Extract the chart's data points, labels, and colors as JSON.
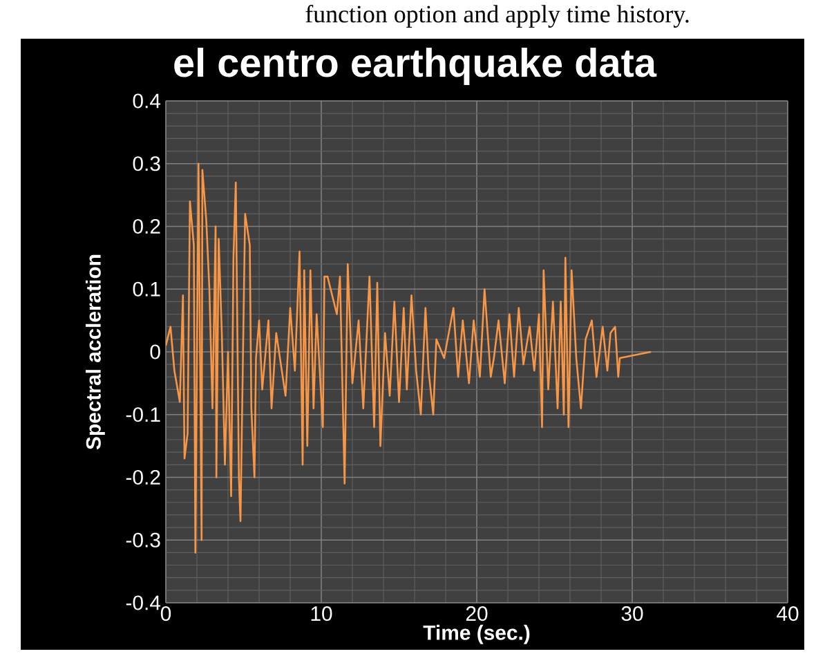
{
  "chart_data": {
    "type": "line",
    "title": "el centro earthquake data",
    "xlabel": "Time (sec.)",
    "ylabel": "Spectral accleration",
    "annotations": [
      "function option and apply time history."
    ],
    "xlim": [
      0,
      40
    ],
    "ylim": [
      -0.4,
      0.4
    ],
    "xticks": [
      0,
      10,
      20,
      30,
      40
    ],
    "yticks": [
      -0.4,
      -0.3,
      -0.2,
      -0.1,
      0,
      0.1,
      0.2,
      0.3,
      0.4
    ],
    "grid": true,
    "x": [
      0,
      0.3,
      0.55,
      0.9,
      1.1,
      1.2,
      1.4,
      1.55,
      1.8,
      1.9,
      2.1,
      2.3,
      2.35,
      2.6,
      2.8,
      3.0,
      3.2,
      3.25,
      3.4,
      3.6,
      3.8,
      4.0,
      4.2,
      4.35,
      4.5,
      4.7,
      4.8,
      5.1,
      5.4,
      5.5,
      5.7,
      5.8,
      6.0,
      6.2,
      6.6,
      6.8,
      7.1,
      7.7,
      8.0,
      8.3,
      8.6,
      8.8,
      8.9,
      9.1,
      9.3,
      9.5,
      9.7,
      10.1,
      10.2,
      10.4,
      11.0,
      11.2,
      11.5,
      11.7,
      12.0,
      12.4,
      12.7,
      13.1,
      13.4,
      13.6,
      13.8,
      14.1,
      14.4,
      14.7,
      15.0,
      15.3,
      15.5,
      15.8,
      16.1,
      16.4,
      16.7,
      16.9,
      17.2,
      17.4,
      17.9,
      18.5,
      18.8,
      19.1,
      19.5,
      19.8,
      20.2,
      20.5,
      20.9,
      21.1,
      21.4,
      21.8,
      22.1,
      22.4,
      22.7,
      23.0,
      23.4,
      23.7,
      24.0,
      24.2,
      24.3,
      24.6,
      24.9,
      25.2,
      25.4,
      25.6,
      25.7,
      25.9,
      26.1,
      26.4,
      26.7,
      27.0,
      27.4,
      27.7,
      28.1,
      28.4,
      28.6,
      28.9,
      29.1,
      29.2,
      31.2
    ],
    "series": [
      {
        "color": "#f79646",
        "values": [
          0.01,
          0.04,
          -0.03,
          -0.08,
          0.09,
          -0.17,
          -0.13,
          0.24,
          0.17,
          -0.32,
          0.3,
          -0.3,
          0.29,
          0.21,
          0.1,
          -0.09,
          0.2,
          -0.2,
          0.18,
          0.03,
          -0.18,
          0.0,
          -0.23,
          0.15,
          0.27,
          -0.2,
          -0.27,
          0.22,
          0.17,
          -0.09,
          -0.2,
          -0.01,
          0.05,
          -0.06,
          0.05,
          -0.09,
          0.03,
          -0.07,
          0.07,
          -0.03,
          0.16,
          -0.18,
          0.13,
          -0.15,
          0.13,
          -0.09,
          0.06,
          -0.12,
          0.12,
          0.12,
          0.06,
          0.12,
          -0.21,
          0.14,
          -0.05,
          0.05,
          -0.09,
          0.12,
          -0.12,
          0.11,
          -0.15,
          0.03,
          -0.07,
          0.08,
          -0.08,
          0.07,
          -0.06,
          0.09,
          -0.03,
          -0.1,
          0.07,
          -0.03,
          -0.1,
          0.02,
          -0.01,
          0.07,
          -0.04,
          0.05,
          -0.05,
          0.05,
          -0.04,
          0.1,
          -0.04,
          -0.01,
          0.05,
          -0.05,
          0.06,
          -0.04,
          0.07,
          -0.02,
          0.04,
          -0.03,
          0.06,
          -0.12,
          0.13,
          -0.06,
          0.08,
          -0.09,
          0.08,
          -0.1,
          0.15,
          -0.12,
          0.13,
          -0.01,
          -0.09,
          0.02,
          0.05,
          -0.04,
          0.04,
          -0.03,
          0.03,
          0.04,
          -0.04,
          -0.01,
          0.0
        ]
      }
    ]
  }
}
